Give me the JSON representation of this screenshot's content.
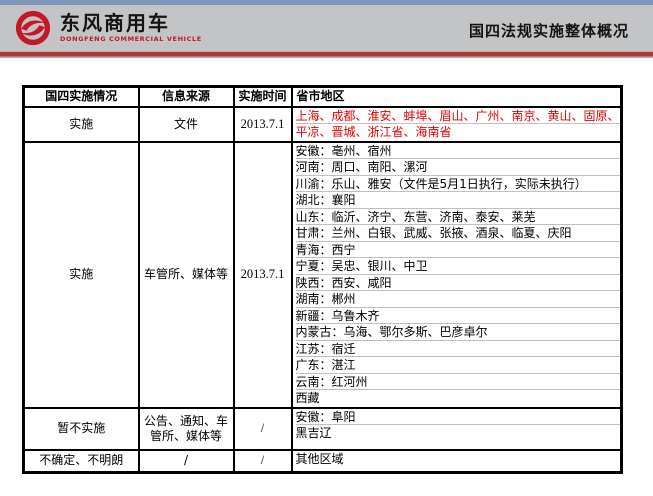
{
  "header": {
    "brand_cn": "东风商用车",
    "brand_en": "DONGFENG COMMERCIAL VEHICLE",
    "title": "国四法规实施整体概况",
    "colors": {
      "top_line": "#7e96b8",
      "band_bg": "#c3c4c6",
      "accent_red": "#a83a3a",
      "logo_red": "#c41826"
    }
  },
  "table": {
    "columns": [
      "国四实施情况",
      "信息来源",
      "实施时间",
      "省市地区"
    ],
    "highlight_color": "#e60000",
    "rows": [
      {
        "status": "实施",
        "source": "文件",
        "date": "2013.7.1",
        "region_color": "#e60000",
        "regions": [
          "上海、成都、淮安、蚌埠、眉山、广州、南京、黄山、固原、",
          "平凉、晋城、浙江省、海南省"
        ]
      },
      {
        "status": "实施",
        "source": "车管所、媒体等",
        "date": "2013.7.1",
        "regions": [
          "安徽：亳州、宿州",
          "河南：周口、南阳、漯河",
          "川渝：乐山、雅安（文件是5月1日执行，实际未执行）",
          "湖北：襄阳",
          "山东：临沂、济宁、东营、济南、泰安、莱芜",
          "甘肃：兰州、白银、武威、张掖、酒泉、临夏、庆阳",
          "青海：西宁",
          "宁夏：吴忠、银川、中卫",
          "陕西：西安、咸阳",
          "湖南：郴州",
          "新疆：乌鲁木齐",
          "内蒙古：乌海、鄂尔多斯、巴彦卓尔",
          "江苏：宿迁",
          "广东：湛江",
          "云南：红河州",
          "西藏"
        ]
      },
      {
        "status": "暂不实施",
        "source": "公告、通知、车管所、媒体等",
        "date": "/",
        "regions": [
          "安徽：阜阳",
          "黑吉辽"
        ]
      },
      {
        "status": "不确定、不明朗",
        "source": "/",
        "date": "/",
        "regions": [
          "其他区域"
        ]
      }
    ]
  }
}
